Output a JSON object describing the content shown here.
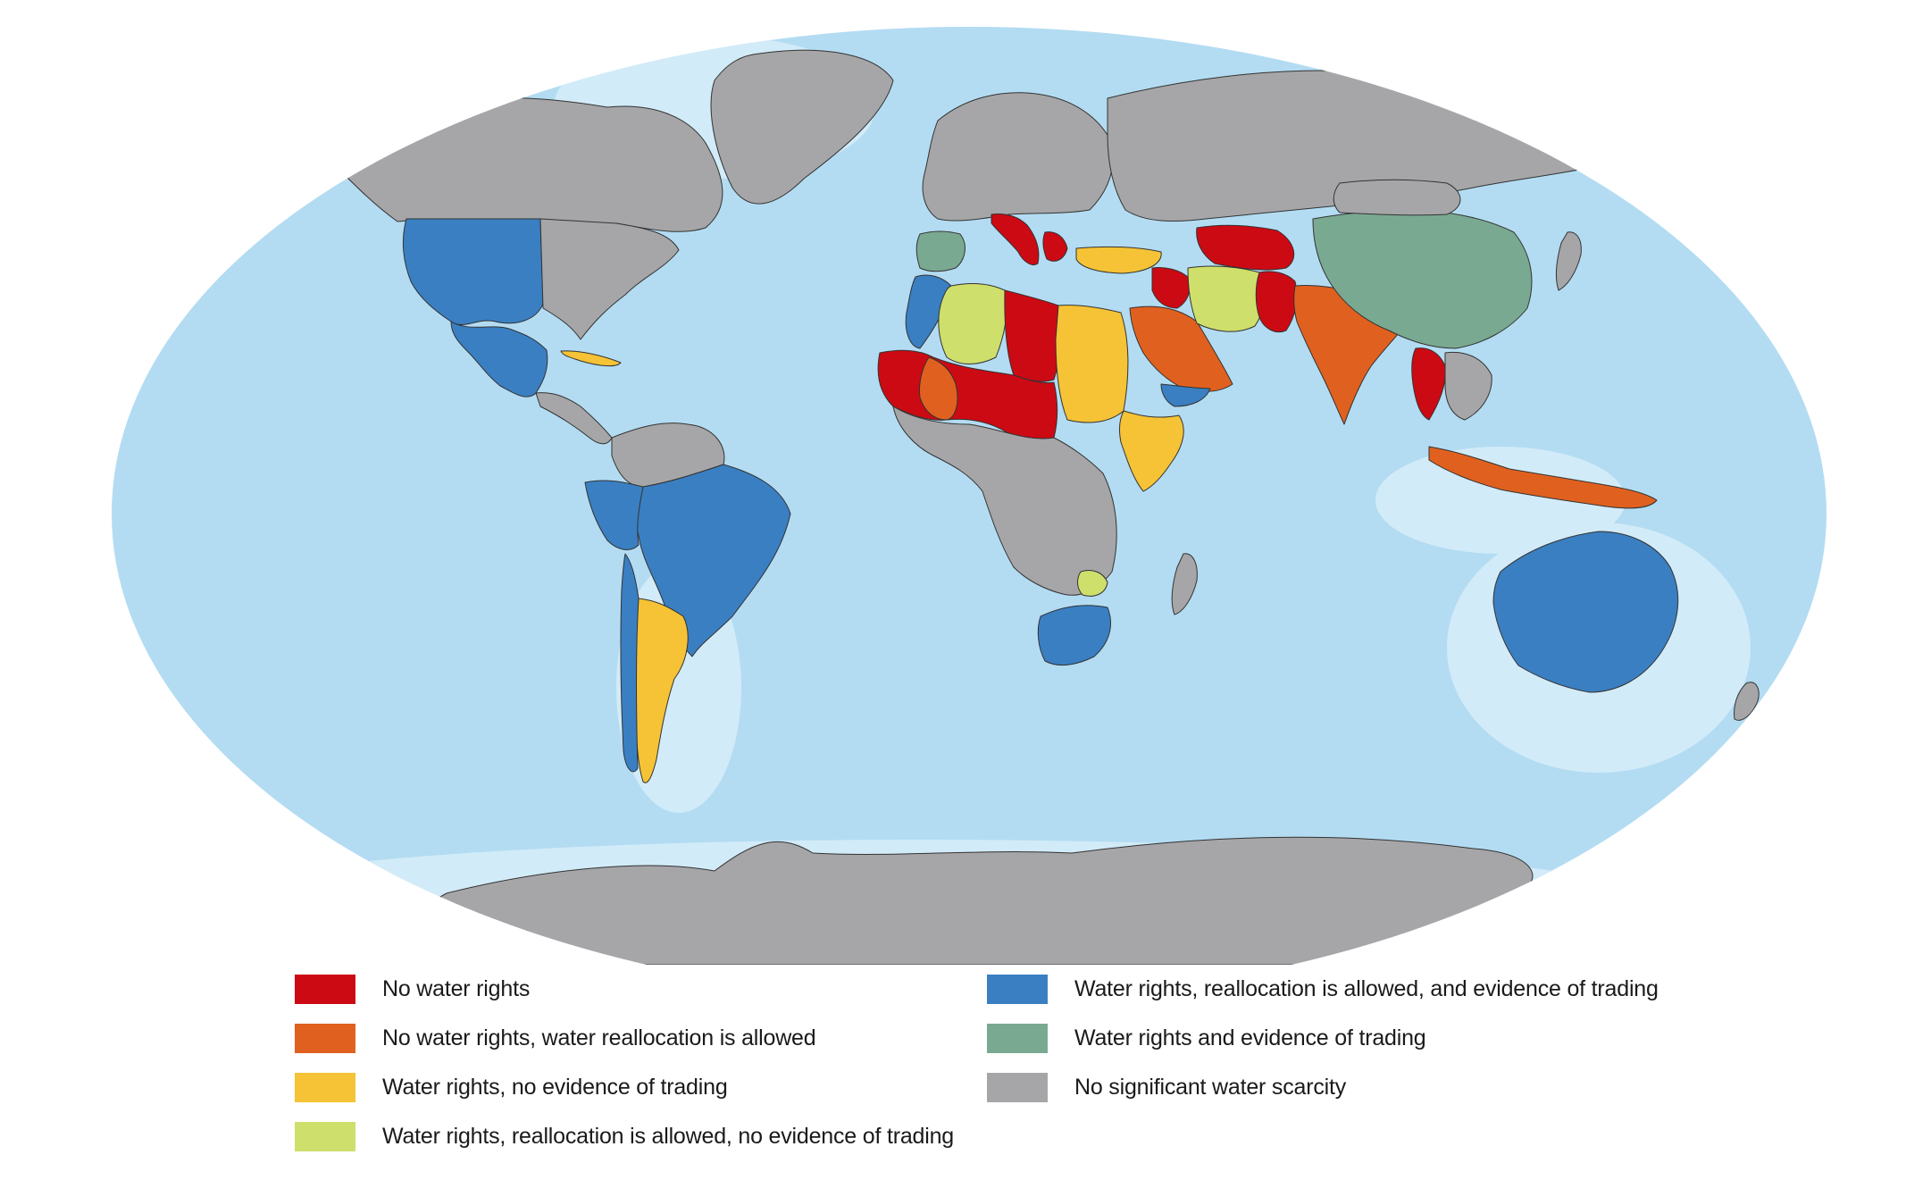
{
  "colors": {
    "ocean": "#b3dcf2",
    "shelf": "#d2ebf8",
    "no_scarcity": "#a6a6a8",
    "border": "#333333"
  },
  "legend": [
    {
      "key": "no_rights",
      "label": "No water rights",
      "color": "#cc0a14"
    },
    {
      "key": "no_rights_realloc",
      "label": "No water rights, water reallocation is allowed",
      "color": "#e0611f"
    },
    {
      "key": "rights_no_trading",
      "label": "Water rights, no evidence of trading",
      "color": "#f5c335"
    },
    {
      "key": "rights_realloc_no_trading",
      "label": "Water rights, reallocation is allowed, no evidence of trading",
      "color": "#cfdf6b"
    },
    {
      "key": "rights_realloc_trading",
      "label": "Water rights, reallocation is allowed, and evidence of trading",
      "color": "#3a7fc2"
    },
    {
      "key": "rights_trading",
      "label": "Water rights and evidence of trading",
      "color": "#7aa992"
    },
    {
      "key": "no_scarcity",
      "label": "No significant water scarcity",
      "color": "#a6a6a8"
    }
  ],
  "regions": [
    {
      "name": "canada",
      "category": "no_scarcity"
    },
    {
      "name": "alaska",
      "category": "no_scarcity"
    },
    {
      "name": "greenland",
      "category": "no_scarcity"
    },
    {
      "name": "western-united-states",
      "category": "rights_realloc_trading"
    },
    {
      "name": "eastern-united-states",
      "category": "no_scarcity"
    },
    {
      "name": "mexico",
      "category": "rights_realloc_trading"
    },
    {
      "name": "central-america",
      "category": "no_scarcity"
    },
    {
      "name": "cuba",
      "category": "rights_no_trading"
    },
    {
      "name": "brazil",
      "category": "rights_realloc_trading"
    },
    {
      "name": "peru",
      "category": "rights_realloc_trading"
    },
    {
      "name": "chile",
      "category": "rights_realloc_trading"
    },
    {
      "name": "argentina",
      "category": "rights_no_trading"
    },
    {
      "name": "northern-south-america",
      "category": "no_scarcity"
    },
    {
      "name": "europe",
      "category": "no_scarcity"
    },
    {
      "name": "spain",
      "category": "rights_trading"
    },
    {
      "name": "italy",
      "category": "no_rights"
    },
    {
      "name": "greece",
      "category": "no_rights"
    },
    {
      "name": "turkey",
      "category": "rights_no_trading"
    },
    {
      "name": "russia",
      "category": "no_scarcity"
    },
    {
      "name": "morocco",
      "category": "rights_realloc_trading"
    },
    {
      "name": "algeria",
      "category": "rights_realloc_no_trading"
    },
    {
      "name": "libya",
      "category": "no_rights"
    },
    {
      "name": "egypt-sudan",
      "category": "rights_no_trading"
    },
    {
      "name": "mauritania-niger-chad",
      "category": "no_rights"
    },
    {
      "name": "mali",
      "category": "no_rights_realloc"
    },
    {
      "name": "horn-of-africa",
      "category": "rights_no_trading"
    },
    {
      "name": "central-africa",
      "category": "no_scarcity"
    },
    {
      "name": "zimbabwe",
      "category": "rights_realloc_no_trading"
    },
    {
      "name": "south-africa",
      "category": "rights_realloc_trading"
    },
    {
      "name": "madagascar",
      "category": "no_scarcity"
    },
    {
      "name": "saudi-arabia",
      "category": "no_rights_realloc"
    },
    {
      "name": "yemen",
      "category": "rights_realloc_trading"
    },
    {
      "name": "iraq",
      "category": "no_rights"
    },
    {
      "name": "iran",
      "category": "rights_realloc_no_trading"
    },
    {
      "name": "central-asia",
      "category": "no_rights"
    },
    {
      "name": "pakistan",
      "category": "no_rights"
    },
    {
      "name": "india",
      "category": "no_rights_realloc"
    },
    {
      "name": "china",
      "category": "rights_trading"
    },
    {
      "name": "mongolia",
      "category": "no_scarcity"
    },
    {
      "name": "thailand",
      "category": "no_rights"
    },
    {
      "name": "southeast-asia",
      "category": "no_scarcity"
    },
    {
      "name": "indonesia",
      "category": "no_rights_realloc"
    },
    {
      "name": "japan",
      "category": "no_scarcity"
    },
    {
      "name": "australia",
      "category": "rights_realloc_trading"
    },
    {
      "name": "new-zealand",
      "category": "no_scarcity"
    },
    {
      "name": "antarctica",
      "category": "no_scarcity"
    }
  ]
}
